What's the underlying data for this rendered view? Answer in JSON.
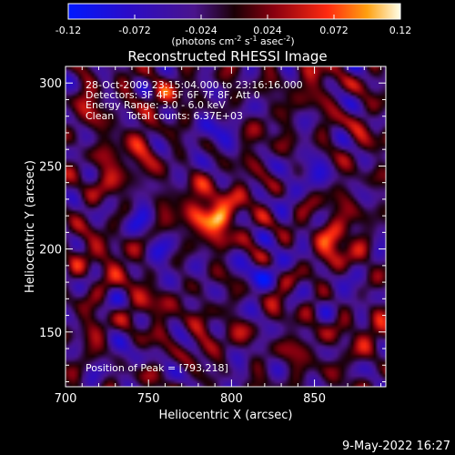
{
  "chart_data": {
    "type": "heatmap",
    "title": "Reconstructed RHESSI Image",
    "xlabel": "Heliocentric X (arcsec)",
    "ylabel": "Heliocentric Y (arcsec)",
    "xlim": [
      700,
      893
    ],
    "ylim": [
      117,
      310
    ],
    "x_ticks": [
      "700",
      "750",
      "800",
      "850"
    ],
    "y_ticks": [
      "150",
      "200",
      "250",
      "300"
    ],
    "colorbar": {
      "min": -0.12,
      "max": 0.12,
      "ticks": [
        "-0.12",
        "-0.072",
        "-0.024",
        "0.024",
        "0.072",
        "0.12"
      ],
      "unit_label": "(photons cm",
      "unit_sup1": "-2",
      "unit_mid": " s",
      "unit_sup2": "-1",
      "unit_mid2": " asec",
      "unit_sup3": "-2",
      "unit_end": ")"
    },
    "annotations": {
      "time_range": "28-Oct-2009 23:15:04.000 to 23:16:16.000",
      "detectors": "Detectors: 3F 4F 5F 6F 7F 8F, Att 0",
      "energy": "Energy Range: 3.0 - 6.0 keV",
      "method": "Clean    Total counts: 6.37E+03",
      "peak": "Position of Peak = [793,218]"
    },
    "peak": {
      "x": 793,
      "y": 218,
      "value": 0.12
    },
    "sources": [
      {
        "x": 793,
        "y": 218,
        "amp": 1.0,
        "r": 5
      },
      {
        "x": 788,
        "y": 228,
        "amp": 0.35,
        "r": 9
      },
      {
        "x": 775,
        "y": 222,
        "amp": 0.45,
        "r": 7
      },
      {
        "x": 780,
        "y": 205,
        "amp": 0.35,
        "r": 7
      },
      {
        "x": 805,
        "y": 235,
        "amp": 0.3,
        "r": 6
      },
      {
        "x": 808,
        "y": 205,
        "amp": 0.3,
        "r": 6
      },
      {
        "x": 863,
        "y": 208,
        "amp": 0.6,
        "r": 6
      },
      {
        "x": 865,
        "y": 195,
        "amp": 0.45,
        "r": 7
      },
      {
        "x": 860,
        "y": 225,
        "amp": 0.35,
        "r": 6
      },
      {
        "x": 740,
        "y": 258,
        "amp": 0.45,
        "r": 8
      },
      {
        "x": 725,
        "y": 240,
        "amp": 0.4,
        "r": 7
      },
      {
        "x": 760,
        "y": 290,
        "amp": 0.35,
        "r": 8
      },
      {
        "x": 715,
        "y": 285,
        "amp": 0.35,
        "r": 7
      },
      {
        "x": 850,
        "y": 300,
        "amp": 0.3,
        "r": 9
      },
      {
        "x": 878,
        "y": 270,
        "amp": 0.25,
        "r": 7
      },
      {
        "x": 720,
        "y": 200,
        "amp": 0.35,
        "r": 8
      },
      {
        "x": 735,
        "y": 185,
        "amp": 0.3,
        "r": 7
      },
      {
        "x": 755,
        "y": 165,
        "amp": 0.35,
        "r": 8
      },
      {
        "x": 830,
        "y": 175,
        "amp": 0.3,
        "r": 8
      },
      {
        "x": 880,
        "y": 150,
        "amp": 0.35,
        "r": 8
      },
      {
        "x": 845,
        "y": 140,
        "amp": 0.25,
        "r": 7
      },
      {
        "x": 790,
        "y": 145,
        "amp": 0.3,
        "r": 8
      },
      {
        "x": 715,
        "y": 150,
        "amp": 0.3,
        "r": 7
      },
      {
        "x": 818,
        "y": 265,
        "amp": 0.25,
        "r": 7
      },
      {
        "x": 845,
        "y": 245,
        "amp": -0.35,
        "r": 10
      },
      {
        "x": 820,
        "y": 185,
        "amp": -0.4,
        "r": 11
      },
      {
        "x": 765,
        "y": 195,
        "amp": -0.35,
        "r": 10
      },
      {
        "x": 790,
        "y": 270,
        "amp": -0.3,
        "r": 12
      },
      {
        "x": 740,
        "y": 220,
        "amp": -0.3,
        "r": 9
      },
      {
        "x": 870,
        "y": 175,
        "amp": -0.3,
        "r": 9
      },
      {
        "x": 730,
        "y": 135,
        "amp": -0.25,
        "r": 8
      },
      {
        "x": 800,
        "y": 128,
        "amp": -0.2,
        "r": 8
      }
    ]
  },
  "footer": {
    "datestamp": "9-May-2022 16:27"
  }
}
